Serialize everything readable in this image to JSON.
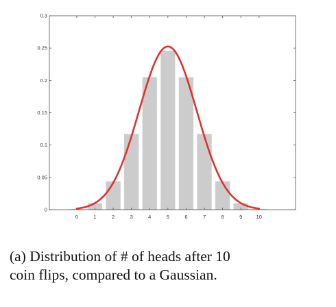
{
  "chart_data": {
    "type": "bar",
    "x": [
      0,
      1,
      2,
      3,
      4,
      5,
      6,
      7,
      8,
      9,
      10
    ],
    "values": [
      0.001,
      0.01,
      0.044,
      0.117,
      0.205,
      0.246,
      0.205,
      0.117,
      0.044,
      0.01,
      0.001
    ],
    "bar_color": "#cccccc",
    "overlay": {
      "type": "line",
      "function": "gaussian",
      "mean": 5,
      "std": 1.58,
      "x_range": [
        0,
        10
      ],
      "color": "#e0312b"
    },
    "xticks": [
      "0",
      "1",
      "2",
      "3",
      "4",
      "5",
      "6",
      "7",
      "8",
      "9",
      "10"
    ],
    "yticks": [
      "0",
      "0.05",
      "0.1",
      "0.15",
      "0.2",
      "0.25",
      "0.3"
    ],
    "xlim": [
      -1.5,
      12
    ],
    "ylim": [
      0,
      0.3
    ],
    "xlabel": "",
    "ylabel": "",
    "title": "",
    "grid": false
  },
  "caption": {
    "line1": "(a) Distribution of # of heads after 10",
    "line2": "coin flips, compared to a Gaussian."
  }
}
